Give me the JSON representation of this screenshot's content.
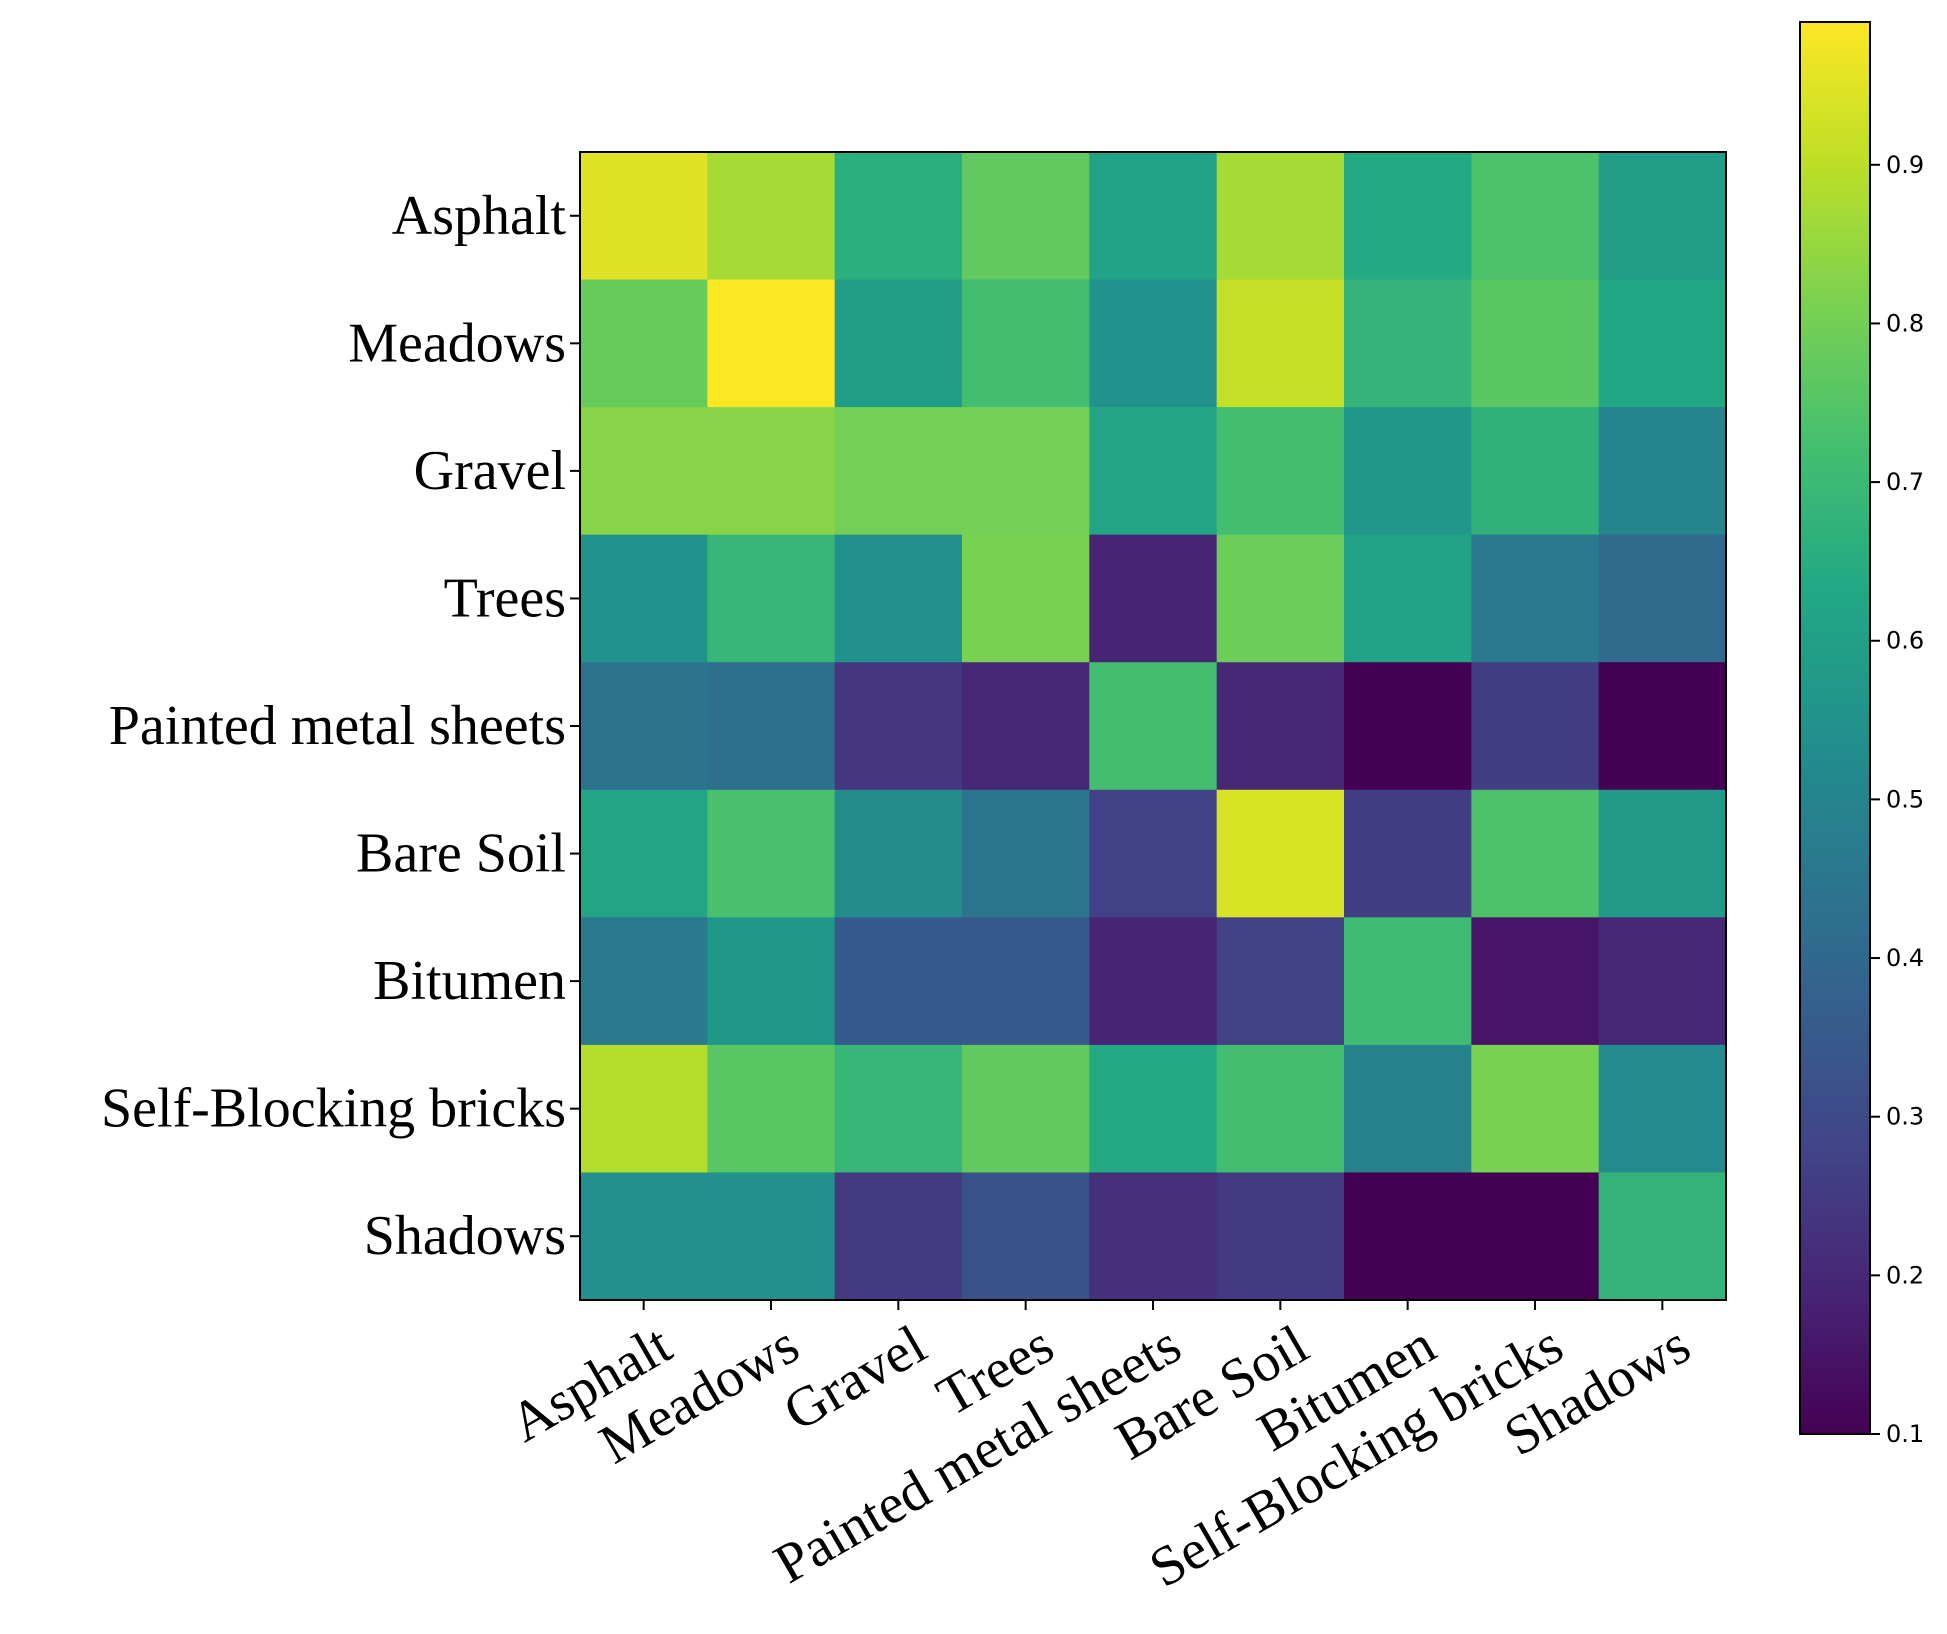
{
  "chart_data": {
    "type": "heatmap",
    "rows": [
      "Asphalt",
      "Meadows",
      "Gravel",
      "Trees",
      "Painted metal sheets",
      "Bare Soil",
      "Bitumen ",
      "Self-Blocking bricks",
      "Shadows"
    ],
    "columns": [
      "Asphalt",
      "Meadows",
      "Gravel",
      "Trees",
      "Painted metal sheets",
      "Bare Soil",
      "Bitumen",
      "Self-Blocking bricks",
      "Shadows"
    ],
    "values": [
      [
        0.95,
        0.87,
        0.66,
        0.77,
        0.61,
        0.87,
        0.64,
        0.74,
        0.59
      ],
      [
        0.78,
        0.99,
        0.59,
        0.72,
        0.55,
        0.91,
        0.68,
        0.76,
        0.63
      ],
      [
        0.83,
        0.83,
        0.8,
        0.8,
        0.62,
        0.72,
        0.57,
        0.67,
        0.5
      ],
      [
        0.55,
        0.69,
        0.54,
        0.81,
        0.19,
        0.79,
        0.61,
        0.46,
        0.41
      ],
      [
        0.44,
        0.42,
        0.24,
        0.2,
        0.72,
        0.2,
        0.1,
        0.26,
        0.1
      ],
      [
        0.62,
        0.73,
        0.53,
        0.45,
        0.27,
        0.94,
        0.26,
        0.74,
        0.58
      ],
      [
        0.46,
        0.57,
        0.35,
        0.35,
        0.19,
        0.27,
        0.71,
        0.15,
        0.2
      ],
      [
        0.89,
        0.76,
        0.69,
        0.77,
        0.64,
        0.72,
        0.49,
        0.81,
        0.52
      ],
      [
        0.54,
        0.54,
        0.25,
        0.32,
        0.22,
        0.25,
        0.1,
        0.1,
        0.68
      ]
    ],
    "colormap": "viridis",
    "colorbar": {
      "min": 0.1,
      "max": 0.99,
      "ticks": [
        0.1,
        0.2,
        0.3,
        0.4,
        0.5,
        0.6,
        0.7,
        0.8,
        0.9
      ],
      "tick_labels": [
        "0.1",
        "0.2",
        "0.3",
        "0.4",
        "0.5",
        "0.6",
        "0.7",
        "0.8",
        "0.9"
      ]
    }
  }
}
